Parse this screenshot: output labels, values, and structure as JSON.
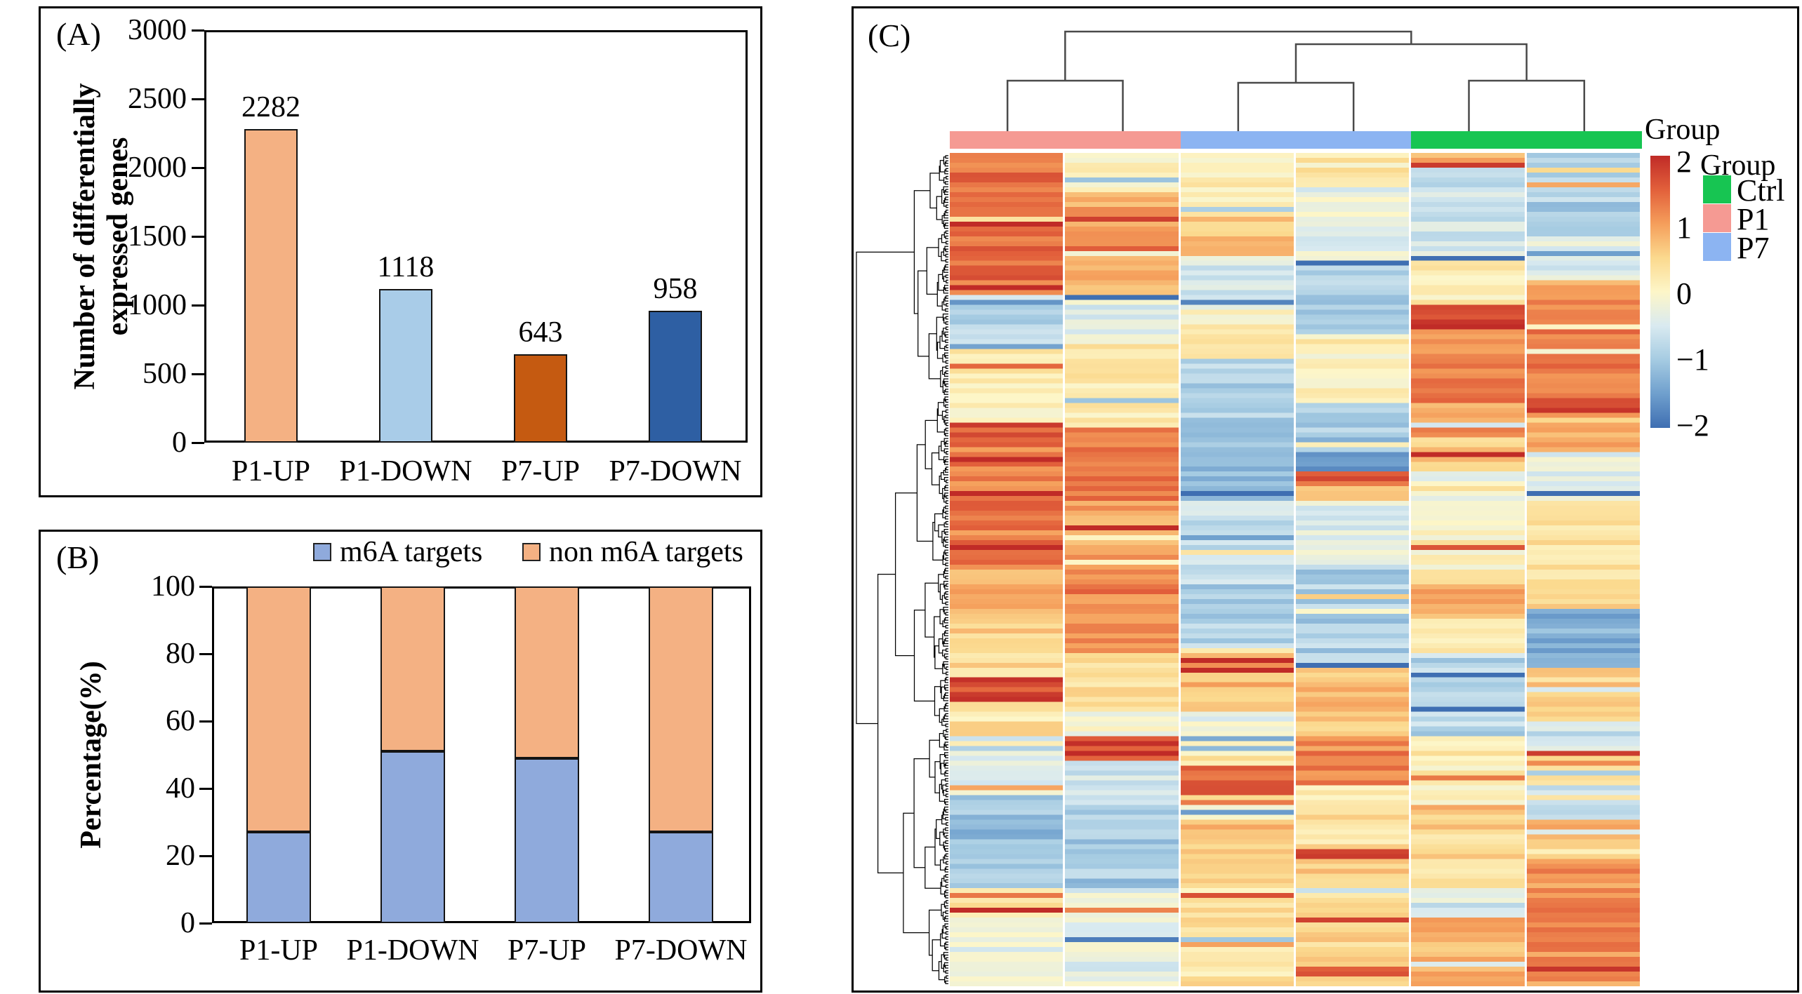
{
  "figure": {
    "panel_a": {
      "label": "(A)",
      "ylabel_line1": "Number of differentially",
      "ylabel_line2": "expressed genes"
    },
    "panel_b": {
      "label": "(B)"
    },
    "panel_c": {
      "label": "(C)",
      "annotation_title": "Group"
    }
  },
  "chart_data": [
    {
      "id": "panel_a_bar",
      "type": "bar",
      "title": "",
      "categories": [
        "P1-UP",
        "P1-DOWN",
        "P7-UP",
        "P7-DOWN"
      ],
      "values": [
        2282,
        1118,
        643,
        958
      ],
      "bar_colors": [
        "#f4b183",
        "#a9cce8",
        "#c55a11",
        "#2e5fa3"
      ],
      "xlabel": "",
      "ylabel": "Number of differentially expressed genes",
      "ylim": [
        0,
        3000
      ],
      "yticks": [
        0,
        500,
        1000,
        1500,
        2000,
        2500,
        3000
      ],
      "grid": false,
      "legend_position": "none"
    },
    {
      "id": "panel_b_stacked",
      "type": "bar",
      "stacked": true,
      "categories": [
        "P1-UP",
        "P1-DOWN",
        "P7-UP",
        "P7-DOWN"
      ],
      "series": [
        {
          "name": "m6A targets",
          "color": "#8faadc",
          "values": [
            27,
            51,
            49,
            27
          ]
        },
        {
          "name": "non m6A targets",
          "color": "#f4b183",
          "values": [
            73,
            49,
            51,
            73
          ]
        }
      ],
      "xlabel": "",
      "ylabel": "Percentage(%)",
      "ylim": [
        0,
        100
      ],
      "yticks": [
        0,
        20,
        40,
        60,
        80,
        100
      ],
      "grid": false,
      "legend_position": "top"
    },
    {
      "id": "panel_c_heatmap",
      "type": "heatmap",
      "columns": 6,
      "column_groups": [
        "P1",
        "P1",
        "P7",
        "P7",
        "Ctrl",
        "Ctrl"
      ],
      "group_colors": {
        "Ctrl": "#17c552",
        "P1": "#f59a93",
        "P7": "#8cb4f2"
      },
      "column_dendrogram_structure": "((P1.1,P1.2),((P7.1,P7.2),(Ctrl.1,Ctrl.2)))",
      "value_range": [
        -2,
        2
      ],
      "colorbar_ticks": [
        "2",
        "1",
        "0",
        "−1",
        "−2"
      ],
      "color_scale": [
        [
          -2,
          "#3f6fb2"
        ],
        [
          -1.5,
          "#6f9fcd"
        ],
        [
          -1,
          "#a5cbe2"
        ],
        [
          -0.5,
          "#d9eaf0"
        ],
        [
          0,
          "#fdf6c8"
        ],
        [
          0.5,
          "#fbd98e"
        ],
        [
          1,
          "#f59e5b"
        ],
        [
          1.5,
          "#e2603b"
        ],
        [
          2,
          "#c02b27"
        ]
      ],
      "legend": {
        "title": "Group",
        "entries": [
          {
            "label": "Ctrl",
            "color": "#17c552"
          },
          {
            "label": "P1",
            "color": "#f59a93"
          },
          {
            "label": "P7",
            "color": "#8cb4f2"
          }
        ]
      },
      "rows": 170,
      "noise": 0.32,
      "column_blocks": [
        [
          [
            0,
            0.17,
            1.4
          ],
          [
            0.17,
            0.235,
            -0.8
          ],
          [
            0.235,
            0.325,
            0.1
          ],
          [
            0.325,
            0.345,
            1.6
          ],
          [
            0.345,
            0.5,
            1.25
          ],
          [
            0.5,
            0.56,
            0.8
          ],
          [
            0.56,
            0.63,
            0.5
          ],
          [
            0.63,
            0.66,
            1.7
          ],
          [
            0.66,
            0.72,
            0.3
          ],
          [
            0.72,
            0.77,
            -0.4
          ],
          [
            0.77,
            0.88,
            -1.1
          ],
          [
            0.88,
            0.92,
            0.4
          ],
          [
            0.92,
            1,
            -0.3
          ]
        ],
        [
          [
            0,
            0.05,
            0.1
          ],
          [
            0.05,
            0.17,
            0.9
          ],
          [
            0.17,
            0.23,
            -0.4
          ],
          [
            0.23,
            0.33,
            0.2
          ],
          [
            0.33,
            0.42,
            1.3
          ],
          [
            0.42,
            0.5,
            1.0
          ],
          [
            0.5,
            0.6,
            1.2
          ],
          [
            0.6,
            0.67,
            0.3
          ],
          [
            0.67,
            0.7,
            -0.2
          ],
          [
            0.7,
            0.73,
            1.7
          ],
          [
            0.73,
            0.78,
            -0.5
          ],
          [
            0.78,
            0.88,
            -1.0
          ],
          [
            0.88,
            1,
            -0.35
          ]
        ],
        [
          [
            0,
            0.1,
            0.2
          ],
          [
            0.1,
            0.12,
            0.9
          ],
          [
            0.12,
            0.19,
            -0.5
          ],
          [
            0.19,
            0.25,
            0.1
          ],
          [
            0.25,
            0.345,
            -0.9
          ],
          [
            0.345,
            0.42,
            -1.1
          ],
          [
            0.42,
            0.52,
            -0.7
          ],
          [
            0.52,
            0.6,
            -0.9
          ],
          [
            0.6,
            0.67,
            0.8
          ],
          [
            0.67,
            0.7,
            -0.3
          ],
          [
            0.7,
            0.73,
            0.2
          ],
          [
            0.73,
            0.78,
            1.4
          ],
          [
            0.78,
            0.8,
            0.1
          ],
          [
            0.8,
            0.88,
            0.7
          ],
          [
            0.88,
            1,
            0.3
          ]
        ],
        [
          [
            0,
            0.04,
            0.2
          ],
          [
            0.04,
            0.13,
            -0.3
          ],
          [
            0.13,
            0.22,
            -0.9
          ],
          [
            0.22,
            0.3,
            0.1
          ],
          [
            0.3,
            0.36,
            -1.0
          ],
          [
            0.36,
            0.385,
            -1.5
          ],
          [
            0.385,
            0.4,
            1.6
          ],
          [
            0.4,
            0.42,
            0.5
          ],
          [
            0.42,
            0.5,
            -0.4
          ],
          [
            0.5,
            0.62,
            -0.9
          ],
          [
            0.62,
            0.7,
            0.7
          ],
          [
            0.7,
            0.76,
            1.2
          ],
          [
            0.76,
            0.835,
            0.3
          ],
          [
            0.835,
            0.85,
            1.7
          ],
          [
            0.85,
            1,
            0.5
          ]
        ],
        [
          [
            0,
            0.02,
            0.8
          ],
          [
            0.02,
            0.13,
            -0.6
          ],
          [
            0.13,
            0.18,
            0.2
          ],
          [
            0.18,
            0.21,
            1.7
          ],
          [
            0.21,
            0.3,
            1.2
          ],
          [
            0.3,
            0.34,
            1.0
          ],
          [
            0.34,
            0.38,
            0.6
          ],
          [
            0.38,
            0.42,
            -0.3
          ],
          [
            0.42,
            0.52,
            0.1
          ],
          [
            0.52,
            0.56,
            0.9
          ],
          [
            0.56,
            0.6,
            0.2
          ],
          [
            0.6,
            0.7,
            -0.8
          ],
          [
            0.7,
            0.73,
            0.3
          ],
          [
            0.73,
            0.78,
            0.1
          ],
          [
            0.78,
            0.82,
            0.7
          ],
          [
            0.82,
            0.88,
            0.4
          ],
          [
            0.88,
            0.92,
            -0.5
          ],
          [
            0.92,
            1,
            0.8
          ]
        ],
        [
          [
            0,
            0.1,
            -0.9
          ],
          [
            0.1,
            0.16,
            -0.4
          ],
          [
            0.16,
            0.295,
            1.3
          ],
          [
            0.295,
            0.31,
            1.9
          ],
          [
            0.31,
            0.36,
            0.8
          ],
          [
            0.36,
            0.42,
            -0.4
          ],
          [
            0.42,
            0.55,
            0.4
          ],
          [
            0.55,
            0.62,
            -1.3
          ],
          [
            0.62,
            0.68,
            0.5
          ],
          [
            0.68,
            0.72,
            -0.6
          ],
          [
            0.72,
            0.76,
            0.2
          ],
          [
            0.76,
            0.8,
            -0.7
          ],
          [
            0.8,
            0.86,
            0.8
          ],
          [
            0.86,
            1,
            1.1
          ]
        ]
      ]
    }
  ]
}
